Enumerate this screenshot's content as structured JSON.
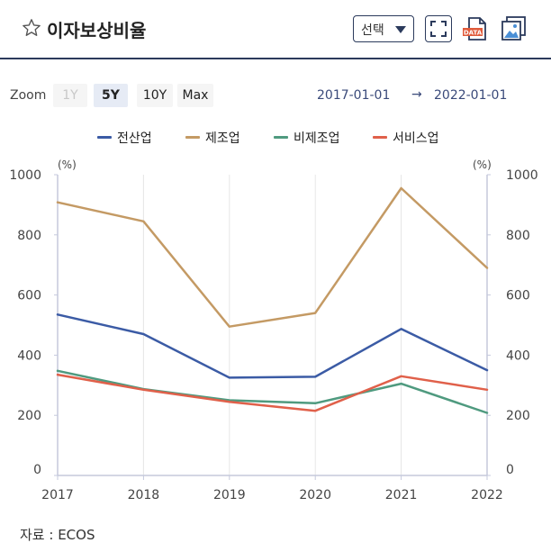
{
  "header": {
    "title": "이자보상비율",
    "select_label": "선택",
    "data_icon_label": "DATA"
  },
  "zoom": {
    "label": "Zoom",
    "buttons": [
      {
        "label": "1Y",
        "state": "disabled"
      },
      {
        "label": "5Y",
        "state": "active"
      },
      {
        "label": "10Y",
        "state": "normal"
      },
      {
        "label": "Max",
        "state": "normal"
      }
    ],
    "date_from": "2017-01-01",
    "arrow": "→",
    "date_to": "2022-01-01"
  },
  "source": {
    "text": "자료 : ECOS"
  },
  "chart_data": {
    "type": "line",
    "x": [
      "2017",
      "2018",
      "2019",
      "2020",
      "2021",
      "2022"
    ],
    "series": [
      {
        "name": "전산업",
        "color": "#3b5ba5",
        "values": [
          535,
          470,
          325,
          328,
          487,
          350
        ]
      },
      {
        "name": "제조업",
        "color": "#c49a64",
        "values": [
          908,
          845,
          495,
          540,
          955,
          690
        ]
      },
      {
        "name": "비제조업",
        "color": "#4f9a7f",
        "values": [
          348,
          287,
          250,
          240,
          305,
          208
        ]
      },
      {
        "name": "서비스업",
        "color": "#e0604a",
        "values": [
          335,
          285,
          245,
          215,
          330,
          285
        ]
      }
    ],
    "ylim": [
      0,
      1000
    ],
    "yticks": [
      "0",
      "200",
      "400",
      "600",
      "800",
      "1000"
    ],
    "y_unit_left": "(%)",
    "y_unit_right": "(%)",
    "grid": "vertical",
    "legend_position": "top"
  }
}
